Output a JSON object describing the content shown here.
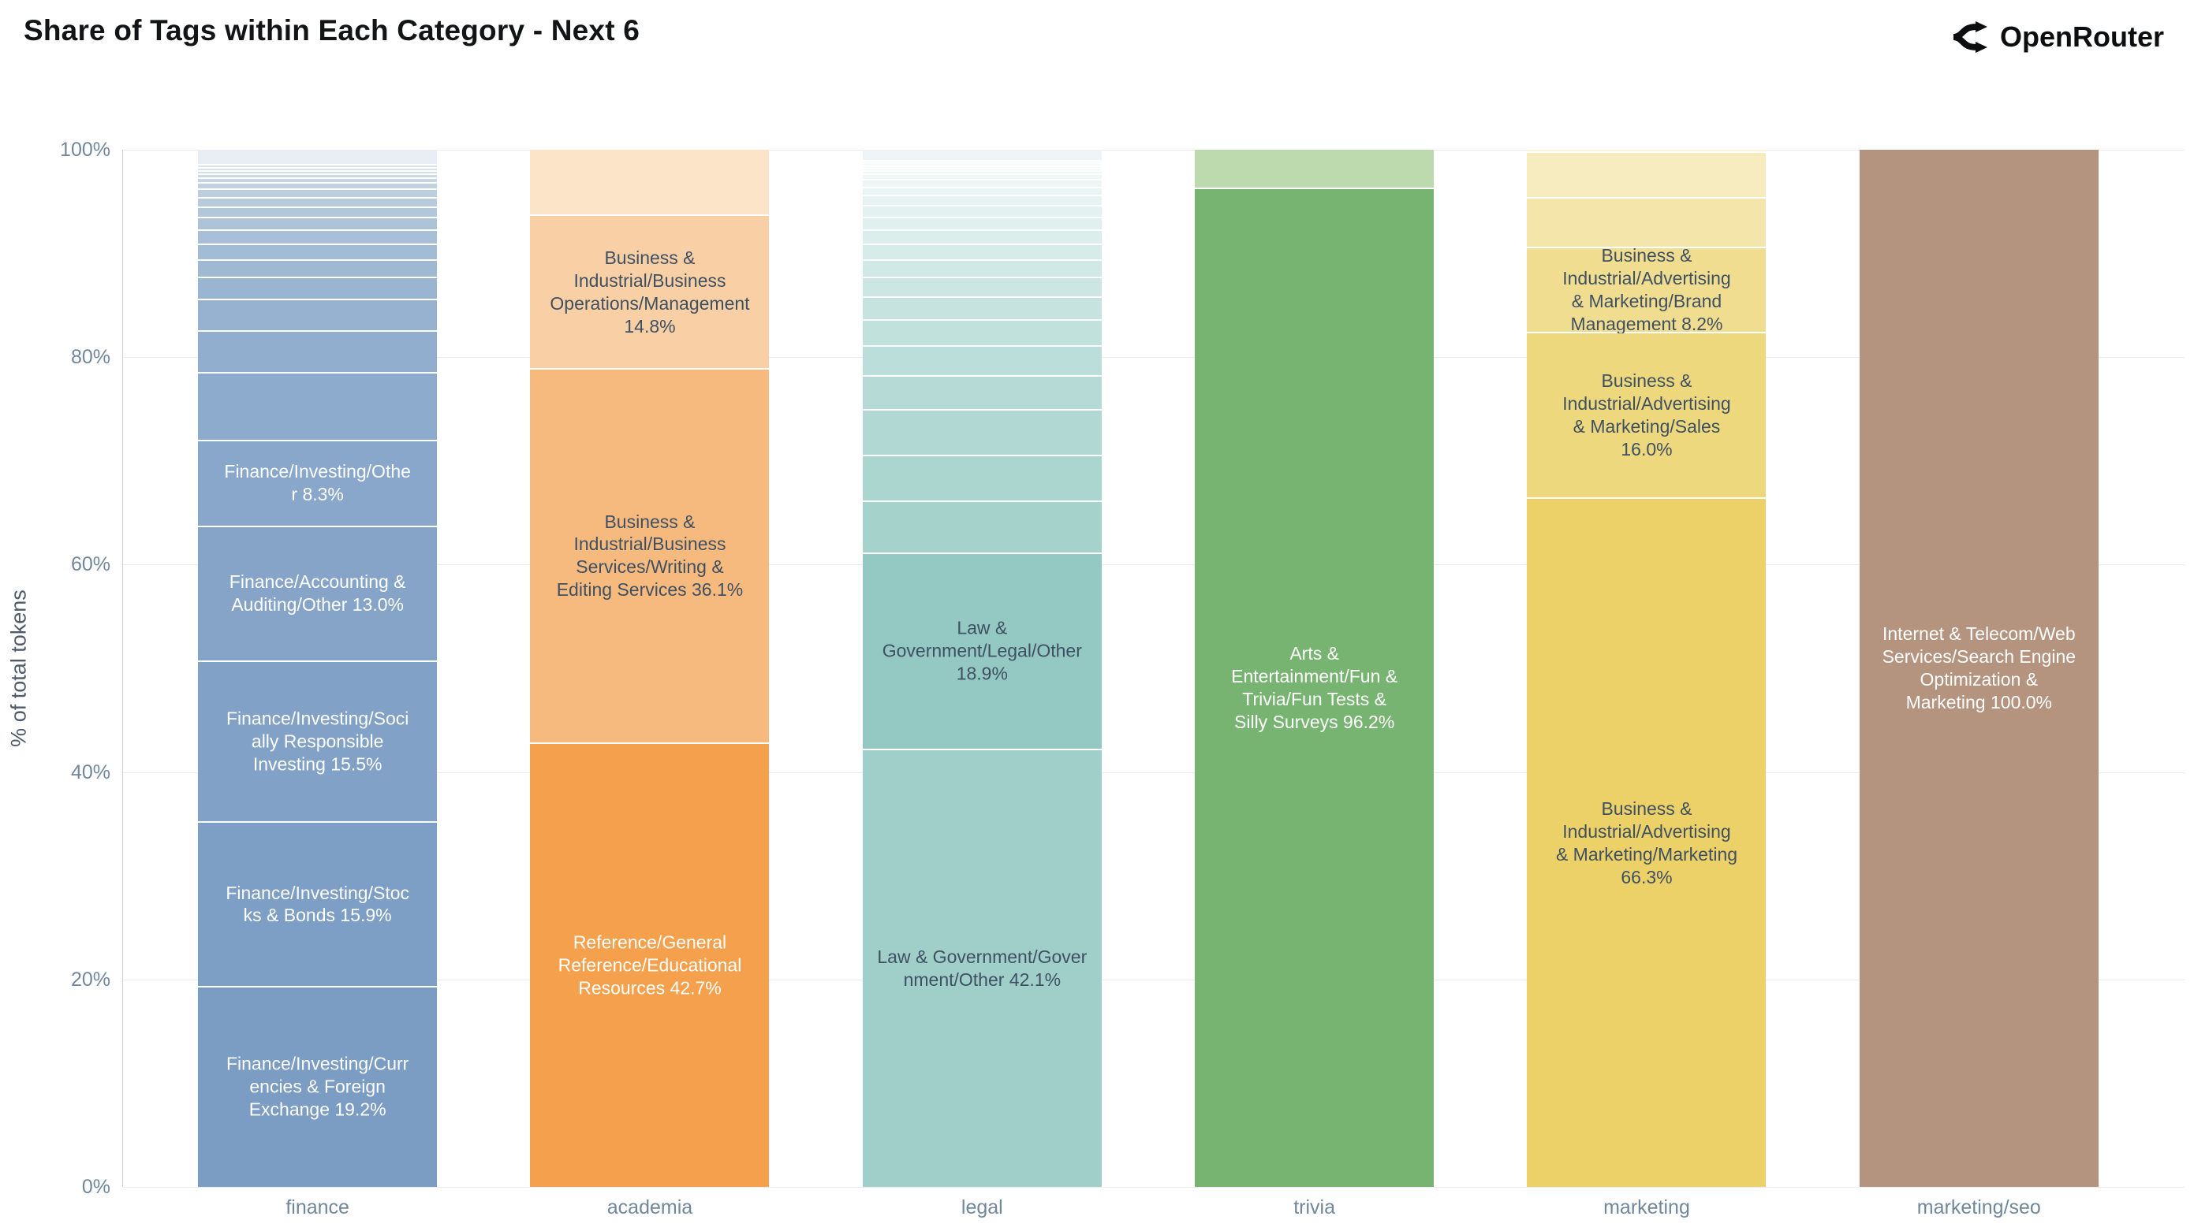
{
  "title": "Share of Tags within Each Category - Next 6",
  "brand": {
    "name": "OpenRouter",
    "icon": "openrouter-fork-icon",
    "color": "#0c0d0f"
  },
  "chart_data": {
    "type": "bar",
    "stacking": "percent",
    "orientation": "vertical",
    "title": "Share of Tags within Each Category - Next 6",
    "xlabel": "",
    "ylabel": "% of total tokens",
    "ylim": [
      0,
      100
    ],
    "yticks": [
      "0%",
      "20%",
      "40%",
      "60%",
      "80%",
      "100%"
    ],
    "grid": "horizontal",
    "legend": "none",
    "gridline_color": "#e9ebee",
    "axis_line_color": "#c9d4e0",
    "tick_color": "#71879c",
    "dark_label_color": "#3e5062",
    "light_label_color": "#ffffff",
    "categories": [
      "finance",
      "academia",
      "legal",
      "trivia",
      "marketing",
      "marketing/seo"
    ],
    "bars": [
      {
        "category": "finance",
        "segments": [
          {
            "label": "Finance/Investing/Curr\nencies & Foreign\nExchange 19.2%",
            "value": 19.2,
            "color": "#7b9cc3",
            "text_color": "#ffffff"
          },
          {
            "label": "Finance/Investing/Stoc\nks & Bonds 15.9%",
            "value": 15.9,
            "color": "#7e9fc5",
            "text_color": "#ffffff"
          },
          {
            "label": "Finance/Investing/Soci\nally Responsible\nInvesting 15.5%",
            "value": 15.5,
            "color": "#81a1c6",
            "text_color": "#ffffff"
          },
          {
            "label": "Finance/Accounting &\nAuditing/Other 13.0%",
            "value": 13.0,
            "color": "#85a4c8",
            "text_color": "#ffffff"
          },
          {
            "label": "Finance/Investing/Othe\nr 8.3%",
            "value": 8.3,
            "color": "#89a7ca",
            "text_color": "#ffffff"
          },
          {
            "label": null,
            "value": 6.5,
            "color": "#8dabcc"
          },
          {
            "label": null,
            "value": 4.0,
            "color": "#91aece"
          },
          {
            "label": null,
            "value": 3.1,
            "color": "#96b2d0"
          },
          {
            "label": null,
            "value": 2.1,
            "color": "#9ab5d1"
          },
          {
            "label": null,
            "value": 1.7,
            "color": "#9fb9d3"
          },
          {
            "label": null,
            "value": 1.5,
            "color": "#a3bcd5"
          },
          {
            "label": null,
            "value": 1.4,
            "color": "#a8c0d7"
          },
          {
            "label": null,
            "value": 1.2,
            "color": "#adc3d8"
          },
          {
            "label": null,
            "value": 1.0,
            "color": "#b2c7da"
          },
          {
            "label": null,
            "value": 0.9,
            "color": "#b7cbdc"
          },
          {
            "label": null,
            "value": 0.8,
            "color": "#bccfde"
          },
          {
            "label": null,
            "value": 0.6,
            "color": "#c2d3e0"
          },
          {
            "label": null,
            "value": 0.5,
            "color": "#c7d6e2"
          },
          {
            "label": null,
            "value": 0.4,
            "color": "#cddae4"
          },
          {
            "label": null,
            "value": 0.3,
            "color": "#d2dde6"
          },
          {
            "label": null,
            "value": 0.3,
            "color": "#d8e1e8"
          },
          {
            "label": null,
            "value": 0.3,
            "color": "#dee5ea"
          },
          {
            "label": null,
            "value": 1.5,
            "color": "#e9eef4"
          }
        ]
      },
      {
        "category": "academia",
        "segments": [
          {
            "label": "Reference/General\nReference/Educational\nResources 42.7%",
            "value": 42.7,
            "color": "#f5a04c",
            "text_color": "#ffffff"
          },
          {
            "label": "Business &\nIndustrial/Business\nServices/Writing &\nEditing Services 36.1%",
            "value": 36.1,
            "color": "#f7ba7e",
            "text_color": "#3e5062"
          },
          {
            "label": "Business &\nIndustrial/Business\nOperations/Management\n14.8%",
            "value": 14.8,
            "color": "#f9d0a5",
            "text_color": "#3e5062"
          },
          {
            "label": null,
            "value": 6.4,
            "color": "#fce4c9"
          }
        ]
      },
      {
        "category": "legal",
        "segments": [
          {
            "label": "Law & Government/Gover\nnment/Other 42.1%",
            "value": 42.1,
            "color": "#a0cfc9",
            "text_color": "#3e5062"
          },
          {
            "label": "Law &\nGovernment/Legal/Other\n18.9%",
            "value": 18.9,
            "color": "#94c8c2",
            "text_color": "#3e5062"
          },
          {
            "label": null,
            "value": 5.0,
            "color": "#a6d2cc"
          },
          {
            "label": null,
            "value": 4.4,
            "color": "#abd5cf"
          },
          {
            "label": null,
            "value": 4.4,
            "color": "#b1d8d3"
          },
          {
            "label": null,
            "value": 3.3,
            "color": "#b6dbd6"
          },
          {
            "label": null,
            "value": 2.9,
            "color": "#bcdeda"
          },
          {
            "label": null,
            "value": 2.5,
            "color": "#c1e1dd"
          },
          {
            "label": null,
            "value": 2.2,
            "color": "#c7e3e0"
          },
          {
            "label": null,
            "value": 1.9,
            "color": "#cce6e3"
          },
          {
            "label": null,
            "value": 1.7,
            "color": "#d1e9e6"
          },
          {
            "label": null,
            "value": 1.5,
            "color": "#d6ece9"
          },
          {
            "label": null,
            "value": 1.4,
            "color": "#dbeeec"
          },
          {
            "label": null,
            "value": 1.2,
            "color": "#dff0ee"
          },
          {
            "label": null,
            "value": 1.1,
            "color": "#e3f2f0"
          },
          {
            "label": null,
            "value": 1.0,
            "color": "#e7f3f2"
          },
          {
            "label": null,
            "value": 0.8,
            "color": "#eaf5f3"
          },
          {
            "label": null,
            "value": 0.7,
            "color": "#edf6f5"
          },
          {
            "label": null,
            "value": 0.6,
            "color": "#f0f8f6"
          },
          {
            "label": null,
            "value": 0.25,
            "color": "#f2f8f7"
          },
          {
            "label": null,
            "value": 0.25,
            "color": "#f4f9f8"
          },
          {
            "label": null,
            "value": 0.25,
            "color": "#f5faf9"
          },
          {
            "label": null,
            "value": 0.25,
            "color": "#f7fbfa"
          },
          {
            "label": null,
            "value": 0.25,
            "color": "#f8fbfb"
          },
          {
            "label": null,
            "value": 1.15,
            "color": "#eff5f6"
          }
        ]
      },
      {
        "category": "trivia",
        "segments": [
          {
            "label": "Arts &\nEntertainment/Fun &\nTrivia/Fun Tests &\nSilly Surveys 96.2%",
            "value": 96.2,
            "color": "#78b471",
            "text_color": "#ffffff"
          },
          {
            "label": null,
            "value": 3.8,
            "color": "#bcdaae"
          }
        ]
      },
      {
        "category": "marketing",
        "segments": [
          {
            "label": "Business &\nIndustrial/Advertising\n& Marketing/Marketing\n66.3%",
            "value": 66.3,
            "color": "#ecd168",
            "text_color": "#3e5062"
          },
          {
            "label": "Business &\nIndustrial/Advertising\n& Marketing/Sales\n16.0%",
            "value": 16.0,
            "color": "#eed87e",
            "text_color": "#3e5062"
          },
          {
            "label": "Business &\nIndustrial/Advertising\n& Marketing/Brand\nManagement 8.2%",
            "value": 8.2,
            "color": "#f0dd90",
            "text_color": "#3e5062"
          },
          {
            "label": null,
            "value": 4.8,
            "color": "#f4e6aa"
          },
          {
            "label": null,
            "value": 4.4,
            "color": "#f7ecbf"
          },
          {
            "label": null,
            "value": 0.3,
            "color": "#fbf4d9"
          }
        ]
      },
      {
        "category": "marketing/seo",
        "segments": [
          {
            "label": "Internet & Telecom/Web\nServices/Search Engine\nOptimization &\nMarketing 100.0%",
            "value": 100.0,
            "color": "#b5947f",
            "text_color": "#ffffff"
          }
        ]
      }
    ]
  }
}
